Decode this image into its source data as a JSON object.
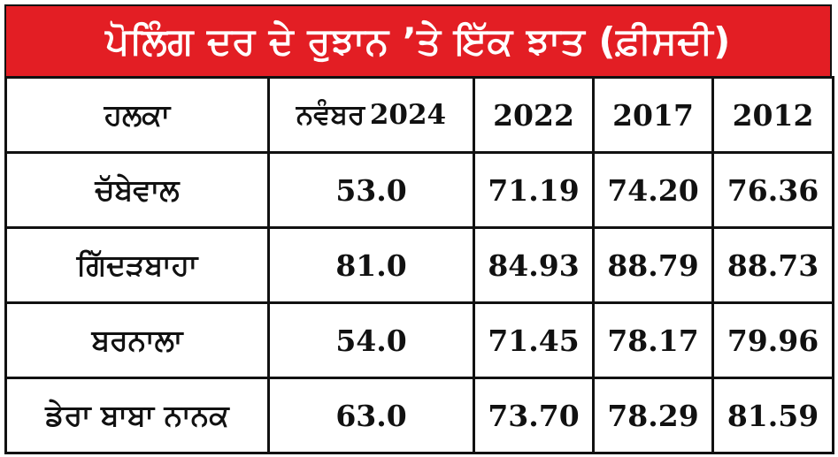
{
  "title": "ਪੋਲਿੰਗ ਦਰ ਦੇ ਰੁਝਾਨ ’ਤੇ ਇੱਕ ਝਾਤ (ਫ਼ੀਸਦੀ)",
  "colors": {
    "title_bg": "#e31e24",
    "title_text": "#ffffff",
    "border": "#111111",
    "text": "#111111"
  },
  "table": {
    "headers": {
      "constituency": "ਹਲਕਾ",
      "november_word": "ਨਵੰਬਰ",
      "november_year": "2024",
      "y2022": "2022",
      "y2017": "2017",
      "y2012": "2012"
    },
    "rows": [
      {
        "name": "ਚੱਬੇਵਾਲ",
        "nov2024": "53.0",
        "y2022": "71.19",
        "y2017": "74.20",
        "y2012": "76.36"
      },
      {
        "name": "ਗਿੱਦੜਬਾਹਾ",
        "nov2024": "81.0",
        "y2022": "84.93",
        "y2017": "88.79",
        "y2012": "88.73"
      },
      {
        "name": "ਬਰਨਾਲਾ",
        "nov2024": "54.0",
        "y2022": "71.45",
        "y2017": "78.17",
        "y2012": "79.96"
      },
      {
        "name": "ਡੇਰਾ ਬਾਬਾ ਨਾਨਕ",
        "nov2024": "63.0",
        "y2022": "73.70",
        "y2017": "78.29",
        "y2012": "81.59"
      }
    ]
  }
}
